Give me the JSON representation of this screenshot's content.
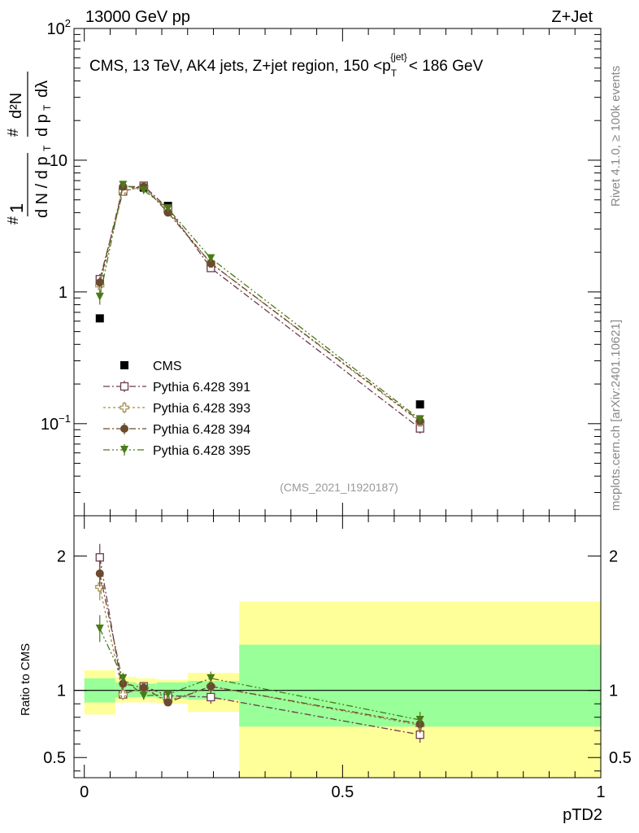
{
  "header": {
    "left": "13000 GeV pp",
    "right": "Z+Jet"
  },
  "side_text": {
    "rivet": "Rivet 4.1.0, ≥ 100k events",
    "mcplots": "mcplots.cern.ch [arXiv:2401.10621]"
  },
  "colors": {
    "cms": "#000000",
    "p391": "#6e3a4e",
    "p393": "#a08a4a",
    "p394": "#6b4a2e",
    "p395": "#4a7a1a",
    "band_inner": "#99ff99",
    "band_outer": "#ffff99"
  },
  "chart_data": [
    {
      "id": "main",
      "type": "scatter",
      "scale_y": "log",
      "title": "CMS, 13 TeV, AK4 jets, Z+jet region, 150 <p",
      "title_sub": "T",
      "title_sup": "{jet}",
      "title_end": "< 186 GeV",
      "ylabel": "1/dN/dp_T  d²N/dp_T dλ",
      "watermark": "(CMS_2021_I1920187)",
      "xlim": [
        -0.02,
        1.0
      ],
      "ylim": [
        0.02,
        100
      ],
      "y_ticks": [
        {
          "v": 0.1,
          "base": "10",
          "exp": "−1"
        },
        {
          "v": 1,
          "base": "1",
          "exp": ""
        },
        {
          "v": 10,
          "base": "10",
          "exp": ""
        },
        {
          "v": 100,
          "base": "10",
          "exp": "2"
        }
      ],
      "bin_edges": [
        0,
        0.06,
        0.1,
        0.14,
        0.2,
        0.3,
        1.0
      ],
      "x_centers": [
        0.03,
        0.075,
        0.115,
        0.162,
        0.245,
        0.65
      ],
      "series": [
        {
          "key": "cms",
          "name": "CMS",
          "marker": "square-filled",
          "line": false,
          "values": [
            0.63,
            6.0,
            6.2,
            4.5,
            1.6,
            0.14
          ],
          "errors": [
            0.01,
            0.05,
            0.05,
            0.05,
            0.03,
            0.005
          ]
        },
        {
          "key": "p391",
          "name": "Pythia 6.428 391",
          "marker": "square-open",
          "line": true,
          "dash": "8,3,2,3",
          "values": [
            1.25,
            5.8,
            6.4,
            4.3,
            1.52,
            0.092
          ],
          "errors": [
            0.12,
            0.15,
            0.15,
            0.1,
            0.05,
            0.008
          ]
        },
        {
          "key": "p393",
          "name": "Pythia 6.428 393",
          "marker": "cross-open",
          "line": true,
          "dash": "3,3",
          "values": [
            1.12,
            5.8,
            6.3,
            4.1,
            1.65,
            0.103
          ],
          "errors": [
            0.12,
            0.15,
            0.15,
            0.1,
            0.05,
            0.008
          ]
        },
        {
          "key": "p394",
          "name": "Pythia 6.428 394",
          "marker": "circle-filled",
          "line": true,
          "dash": "8,3,2,3",
          "values": [
            1.18,
            6.3,
            6.3,
            4.0,
            1.65,
            0.105
          ],
          "errors": [
            0.12,
            0.15,
            0.15,
            0.1,
            0.05,
            0.008
          ]
        },
        {
          "key": "p395",
          "name": "Pythia 6.428 395",
          "marker": "triangle-down-filled",
          "line": true,
          "dash": "8,3,2,3,2,3",
          "values": [
            0.92,
            6.5,
            5.9,
            4.3,
            1.8,
            0.108
          ],
          "errors": [
            0.12,
            0.15,
            0.15,
            0.1,
            0.05,
            0.008
          ]
        }
      ]
    },
    {
      "id": "ratio",
      "type": "scatter",
      "scale_y": "linear",
      "ylabel": "Ratio to CMS",
      "xlabel": "pTD2",
      "xlim": [
        -0.02,
        1.0
      ],
      "ylim": [
        0.35,
        2.3
      ],
      "y_ticks": [
        0.5,
        1,
        2
      ],
      "x_ticks": [
        0,
        0.5,
        1
      ],
      "x_tick_labels": [
        "0",
        "0.5",
        "1"
      ],
      "bands": [
        {
          "x0": 0,
          "x1": 0.06,
          "inner": [
            0.91,
            1.09
          ],
          "outer": [
            0.82,
            1.15
          ]
        },
        {
          "x0": 0.06,
          "x1": 0.1,
          "inner": [
            0.95,
            1.06
          ],
          "outer": [
            0.91,
            1.1
          ]
        },
        {
          "x0": 0.1,
          "x1": 0.14,
          "inner": [
            0.95,
            1.05
          ],
          "outer": [
            0.91,
            1.09
          ]
        },
        {
          "x0": 0.14,
          "x1": 0.2,
          "inner": [
            0.94,
            1.06
          ],
          "outer": [
            0.9,
            1.08
          ]
        },
        {
          "x0": 0.2,
          "x1": 0.3,
          "inner": [
            0.93,
            1.07
          ],
          "outer": [
            0.84,
            1.13
          ]
        },
        {
          "x0": 0.3,
          "x1": 1.0,
          "inner": [
            0.73,
            1.34
          ],
          "outer": [
            0.3,
            1.66
          ]
        }
      ],
      "series": [
        {
          "key": "p391",
          "values": [
            1.99,
            0.97,
            1.03,
            0.96,
            0.95,
            0.67
          ],
          "errors": [
            0.1,
            0.04,
            0.03,
            0.03,
            0.05,
            0.06
          ]
        },
        {
          "key": "p393",
          "values": [
            1.77,
            0.97,
            1.02,
            0.92,
            1.03,
            0.74
          ],
          "errors": [
            0.1,
            0.04,
            0.03,
            0.03,
            0.05,
            0.06
          ]
        },
        {
          "key": "p394",
          "values": [
            1.87,
            1.05,
            1.02,
            0.91,
            1.03,
            0.75
          ],
          "errors": [
            0.1,
            0.04,
            0.03,
            0.03,
            0.05,
            0.06
          ]
        },
        {
          "key": "p395",
          "values": [
            1.46,
            1.09,
            0.96,
            0.97,
            1.09,
            0.78
          ],
          "errors": [
            0.1,
            0.04,
            0.03,
            0.03,
            0.05,
            0.06
          ]
        }
      ]
    }
  ]
}
